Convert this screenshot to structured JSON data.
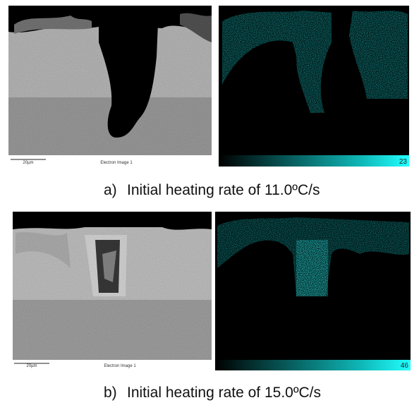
{
  "panels": [
    {
      "label": "a)",
      "caption": "Initial heating rate of 11.0ºC/s",
      "scale_bar": "20µm",
      "image_label": "Electron Image 1",
      "colorbar_max": 23
    },
    {
      "label": "b)",
      "caption": "Initial heating rate of 15.0ºC/s",
      "scale_bar": "20µm",
      "image_label": "Electron Image 1",
      "colorbar_max": 46
    }
  ]
}
